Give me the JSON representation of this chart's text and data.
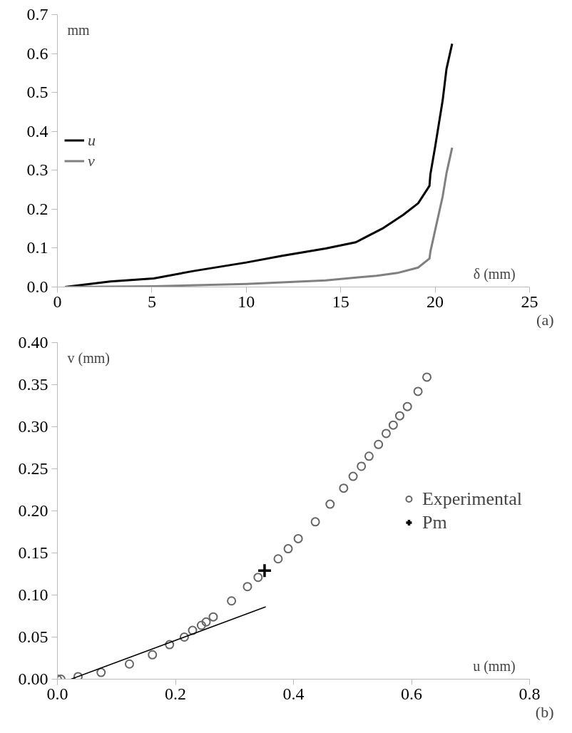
{
  "chart_data": [
    {
      "type": "line",
      "xlabel": "δ (mm)",
      "ylabel": "mm",
      "annotations": [
        "(a)"
      ],
      "legend": "left",
      "grid": false,
      "xlim": [
        0,
        25
      ],
      "xticks": [
        0,
        5,
        10,
        15,
        20,
        25
      ],
      "ylim": [
        0,
        0.7
      ],
      "yticks": [
        {
          "value": 0,
          "label": "0.0"
        },
        0.1,
        0.2,
        0.3,
        0.4,
        0.5,
        0.6,
        0.7
      ],
      "series": [
        {
          "name": "u",
          "color": "#000000",
          "x": [
            0.4,
            2.8,
            5.1,
            7.2,
            10.0,
            11.9,
            14.2,
            15.8,
            17.2,
            18.3,
            19.1,
            19.7,
            19.75,
            20.0,
            20.4,
            20.6,
            20.9
          ],
          "values": [
            0,
            0.014,
            0.022,
            0.041,
            0.063,
            0.08,
            0.099,
            0.115,
            0.15,
            0.185,
            0.215,
            0.26,
            0.29,
            0.36,
            0.48,
            0.56,
            0.625
          ]
        },
        {
          "name": "v",
          "color": "#808080",
          "x": [
            0.4,
            5.1,
            10.0,
            14.2,
            16.9,
            18.0,
            19.1,
            19.7,
            19.75,
            20.0,
            20.4,
            20.6,
            20.9
          ],
          "values": [
            0,
            0.002,
            0.008,
            0.017,
            0.029,
            0.036,
            0.05,
            0.073,
            0.091,
            0.146,
            0.233,
            0.292,
            0.358
          ]
        }
      ]
    },
    {
      "type": "scatter",
      "xlabel": "u (mm)",
      "ylabel": "v (mm)",
      "annotations": [
        "(b)"
      ],
      "legend": "right",
      "grid": false,
      "xlim": [
        0,
        0.8
      ],
      "xticks": [
        {
          "value": 0,
          "label": "0.0"
        },
        0.2,
        0.4,
        0.6,
        0.8
      ],
      "ylim": [
        0,
        0.4
      ],
      "yticks": [
        {
          "value": 0,
          "label": "0.00"
        },
        0.05,
        {
          "value": 0.1,
          "label": "0.10"
        },
        0.15,
        {
          "value": 0.2,
          "label": "0.20"
        },
        0.25,
        {
          "value": 0.3,
          "label": "0.30"
        },
        0.35,
        {
          "value": 0.4,
          "label": "0.40"
        }
      ],
      "series": [
        {
          "name": "Experimental",
          "color": "#666666",
          "marker": "circle",
          "x": [
            0,
            0.006,
            0.035,
            0.074,
            0.122,
            0.161,
            0.19,
            0.215,
            0.229,
            0.244,
            0.252,
            0.264,
            0.295,
            0.322,
            0.34,
            0.374,
            0.391,
            0.408,
            0.437,
            0.462,
            0.485,
            0.501,
            0.515,
            0.528,
            0.544,
            0.557,
            0.569,
            0.58,
            0.593,
            0.611,
            0.626
          ],
          "values": [
            0,
            0.0,
            0.003,
            0.008,
            0.018,
            0.029,
            0.041,
            0.05,
            0.058,
            0.064,
            0.068,
            0.074,
            0.093,
            0.11,
            0.121,
            0.143,
            0.155,
            0.167,
            0.187,
            0.208,
            0.227,
            0.241,
            0.253,
            0.265,
            0.279,
            0.292,
            0.302,
            0.313,
            0.324,
            0.342,
            0.359
          ]
        },
        {
          "name": "Pm",
          "color": "#000000",
          "marker": "cross",
          "x": [
            0.351
          ],
          "values": [
            0.129
          ]
        },
        {
          "type": "line",
          "color": "#000000",
          "x": [
            0.023,
            0.353
          ],
          "values": [
            0.0,
            0.086
          ]
        }
      ]
    }
  ]
}
